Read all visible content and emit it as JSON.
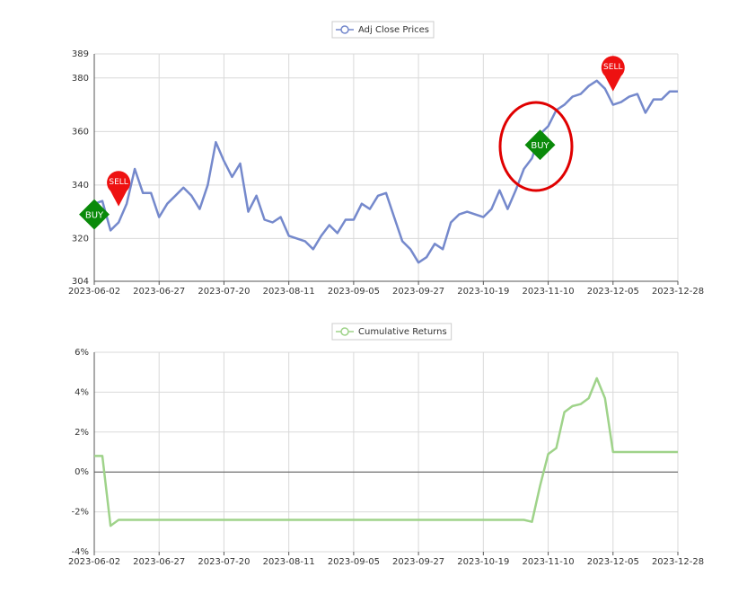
{
  "chart_data": [
    {
      "type": "line",
      "categories": [
        "2023-06-02",
        null,
        null,
        null,
        null,
        null,
        null,
        null,
        "2023-06-27",
        null,
        null,
        null,
        null,
        null,
        null,
        null,
        "2023-07-20",
        null,
        null,
        null,
        null,
        null,
        null,
        null,
        "2023-08-11",
        null,
        null,
        null,
        null,
        null,
        null,
        null,
        "2023-09-05",
        null,
        null,
        null,
        null,
        null,
        null,
        null,
        "2023-09-27",
        null,
        null,
        null,
        null,
        null,
        null,
        null,
        "2023-10-19",
        null,
        null,
        null,
        null,
        null,
        null,
        null,
        "2023-11-10",
        null,
        null,
        null,
        null,
        null,
        null,
        null,
        "2023-12-05",
        null,
        null,
        null,
        null,
        null,
        null,
        null,
        "2023-12-28"
      ],
      "series": [
        {
          "name": "Adj Close Prices",
          "color": "#7589cc",
          "values": [
            333,
            334,
            323,
            326,
            333,
            346,
            337,
            337,
            328,
            333,
            336,
            339,
            336,
            331,
            340,
            356,
            349,
            343,
            348,
            330,
            336,
            327,
            326,
            328,
            321,
            320,
            319,
            316,
            321,
            325,
            322,
            327,
            327,
            333,
            331,
            336,
            337,
            328,
            319,
            316,
            311,
            313,
            318,
            316,
            326,
            329,
            330,
            329,
            328,
            331,
            338,
            331,
            338,
            346,
            350,
            359,
            362,
            368,
            370,
            373,
            374,
            377,
            379,
            376,
            370,
            371,
            373,
            374,
            367,
            372,
            372,
            375,
            375
          ]
        }
      ],
      "signals": [
        {
          "text": "BUY",
          "color": "#0a8a0a",
          "values": [
            329,
            null,
            null,
            null,
            null,
            null,
            null,
            null,
            null,
            null,
            null,
            null,
            null,
            null,
            null,
            null,
            null,
            null,
            null,
            null,
            null,
            null,
            null,
            null,
            null,
            null,
            null,
            null,
            null,
            null,
            null,
            null,
            null,
            null,
            null,
            null,
            null,
            null,
            null,
            null,
            null,
            null,
            null,
            null,
            null,
            null,
            null,
            null,
            null,
            null,
            null,
            null,
            null,
            null,
            null,
            355,
            null,
            null,
            null,
            null,
            null,
            null,
            null,
            null,
            null,
            null,
            null,
            null,
            null,
            null,
            null,
            null,
            null
          ]
        },
        {
          "text": "SELL",
          "color": "#ee1111",
          "values": [
            null,
            null,
            null,
            332,
            null,
            null,
            null,
            null,
            null,
            null,
            null,
            null,
            null,
            null,
            null,
            null,
            null,
            null,
            null,
            null,
            null,
            null,
            null,
            null,
            null,
            null,
            null,
            null,
            null,
            null,
            null,
            null,
            null,
            null,
            null,
            null,
            null,
            null,
            null,
            null,
            null,
            null,
            null,
            null,
            null,
            null,
            null,
            null,
            null,
            null,
            null,
            null,
            null,
            null,
            null,
            null,
            null,
            null,
            null,
            null,
            null,
            null,
            null,
            null,
            375,
            null,
            null,
            null,
            null,
            null,
            null,
            null,
            null
          ]
        }
      ],
      "ylim": [
        304,
        389
      ],
      "yticks": [
        304,
        320,
        340,
        360,
        380,
        389
      ],
      "grid": true
    },
    {
      "type": "line",
      "categories": [
        "2023-06-02",
        null,
        null,
        null,
        null,
        null,
        null,
        null,
        "2023-06-27",
        null,
        null,
        null,
        null,
        null,
        null,
        null,
        "2023-07-20",
        null,
        null,
        null,
        null,
        null,
        null,
        null,
        "2023-08-11",
        null,
        null,
        null,
        null,
        null,
        null,
        null,
        "2023-09-05",
        null,
        null,
        null,
        null,
        null,
        null,
        null,
        "2023-09-27",
        null,
        null,
        null,
        null,
        null,
        null,
        null,
        "2023-10-19",
        null,
        null,
        null,
        null,
        null,
        null,
        null,
        "2023-11-10",
        null,
        null,
        null,
        null,
        null,
        null,
        null,
        "2023-12-05",
        null,
        null,
        null,
        null,
        null,
        null,
        null,
        "2023-12-28"
      ],
      "series": [
        {
          "name": "Cumulative Returns",
          "color": "#9fd38a",
          "values": [
            0.8,
            0.8,
            -2.7,
            -2.4,
            -2.4,
            -2.4,
            -2.4,
            -2.4,
            -2.4,
            -2.4,
            -2.4,
            -2.4,
            -2.4,
            -2.4,
            -2.4,
            -2.4,
            -2.4,
            -2.4,
            -2.4,
            -2.4,
            -2.4,
            -2.4,
            -2.4,
            -2.4,
            -2.4,
            -2.4,
            -2.4,
            -2.4,
            -2.4,
            -2.4,
            -2.4,
            -2.4,
            -2.4,
            -2.4,
            -2.4,
            -2.4,
            -2.4,
            -2.4,
            -2.4,
            -2.4,
            -2.4,
            -2.4,
            -2.4,
            -2.4,
            -2.4,
            -2.4,
            -2.4,
            -2.4,
            -2.4,
            -2.4,
            -2.4,
            -2.4,
            -2.4,
            -2.4,
            -2.5,
            -0.7,
            0.9,
            1.2,
            3.0,
            3.3,
            3.4,
            3.7,
            4.7,
            3.7,
            1.0,
            1.0,
            1.0,
            1.0,
            1.0,
            1.0,
            1.0,
            1.0,
            1.0
          ]
        }
      ],
      "ylim": [
        -4,
        6
      ],
      "yticks": [
        {
          "value": -4,
          "label": "-4%"
        },
        {
          "value": -2,
          "label": "-2%"
        },
        {
          "value": 0,
          "label": "0%"
        },
        {
          "value": 2,
          "label": "2%"
        },
        {
          "value": 4,
          "label": "4%"
        },
        {
          "value": 6,
          "label": "6%"
        }
      ],
      "grid": true
    }
  ]
}
